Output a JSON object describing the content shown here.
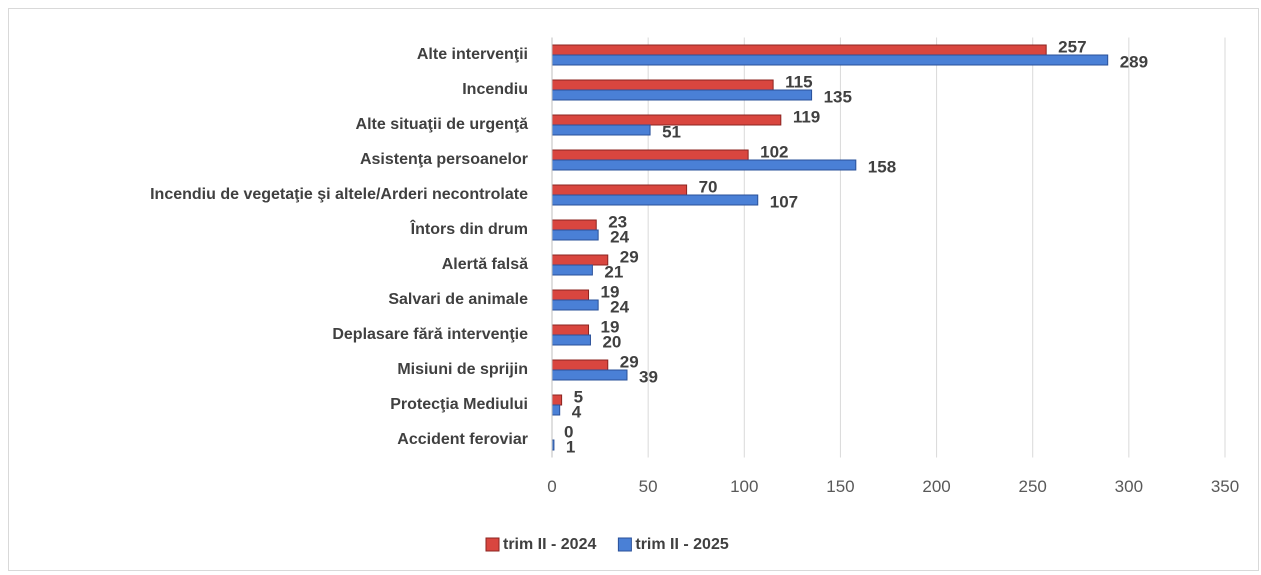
{
  "chart_data": {
    "type": "bar",
    "orientation": "horizontal",
    "categories": [
      "Alte intervenţii",
      "Incendiu",
      "Alte situaţii de urgenţă",
      "Asistenţa persoanelor",
      "Incendiu de vegetaţie şi altele/Arderi necontrolate",
      "Întors din drum",
      "Alertă falsă",
      "Salvari de animale",
      "Deplasare fără intervenţie",
      "Misiuni de sprijin",
      "Protecţia Mediului",
      "Accident feroviar"
    ],
    "series": [
      {
        "name": "trim II - 2024",
        "color": "#d9463f",
        "values": [
          257,
          115,
          119,
          102,
          70,
          23,
          29,
          19,
          19,
          29,
          5,
          0
        ]
      },
      {
        "name": "trim II - 2025",
        "color": "#4a80d6",
        "values": [
          289,
          135,
          51,
          158,
          107,
          24,
          21,
          24,
          20,
          39,
          4,
          1
        ]
      }
    ],
    "xlim": [
      0,
      350
    ],
    "xticks": [
      0,
      50,
      100,
      150,
      200,
      250,
      300,
      350
    ],
    "grid": true,
    "legend": "bottom"
  }
}
